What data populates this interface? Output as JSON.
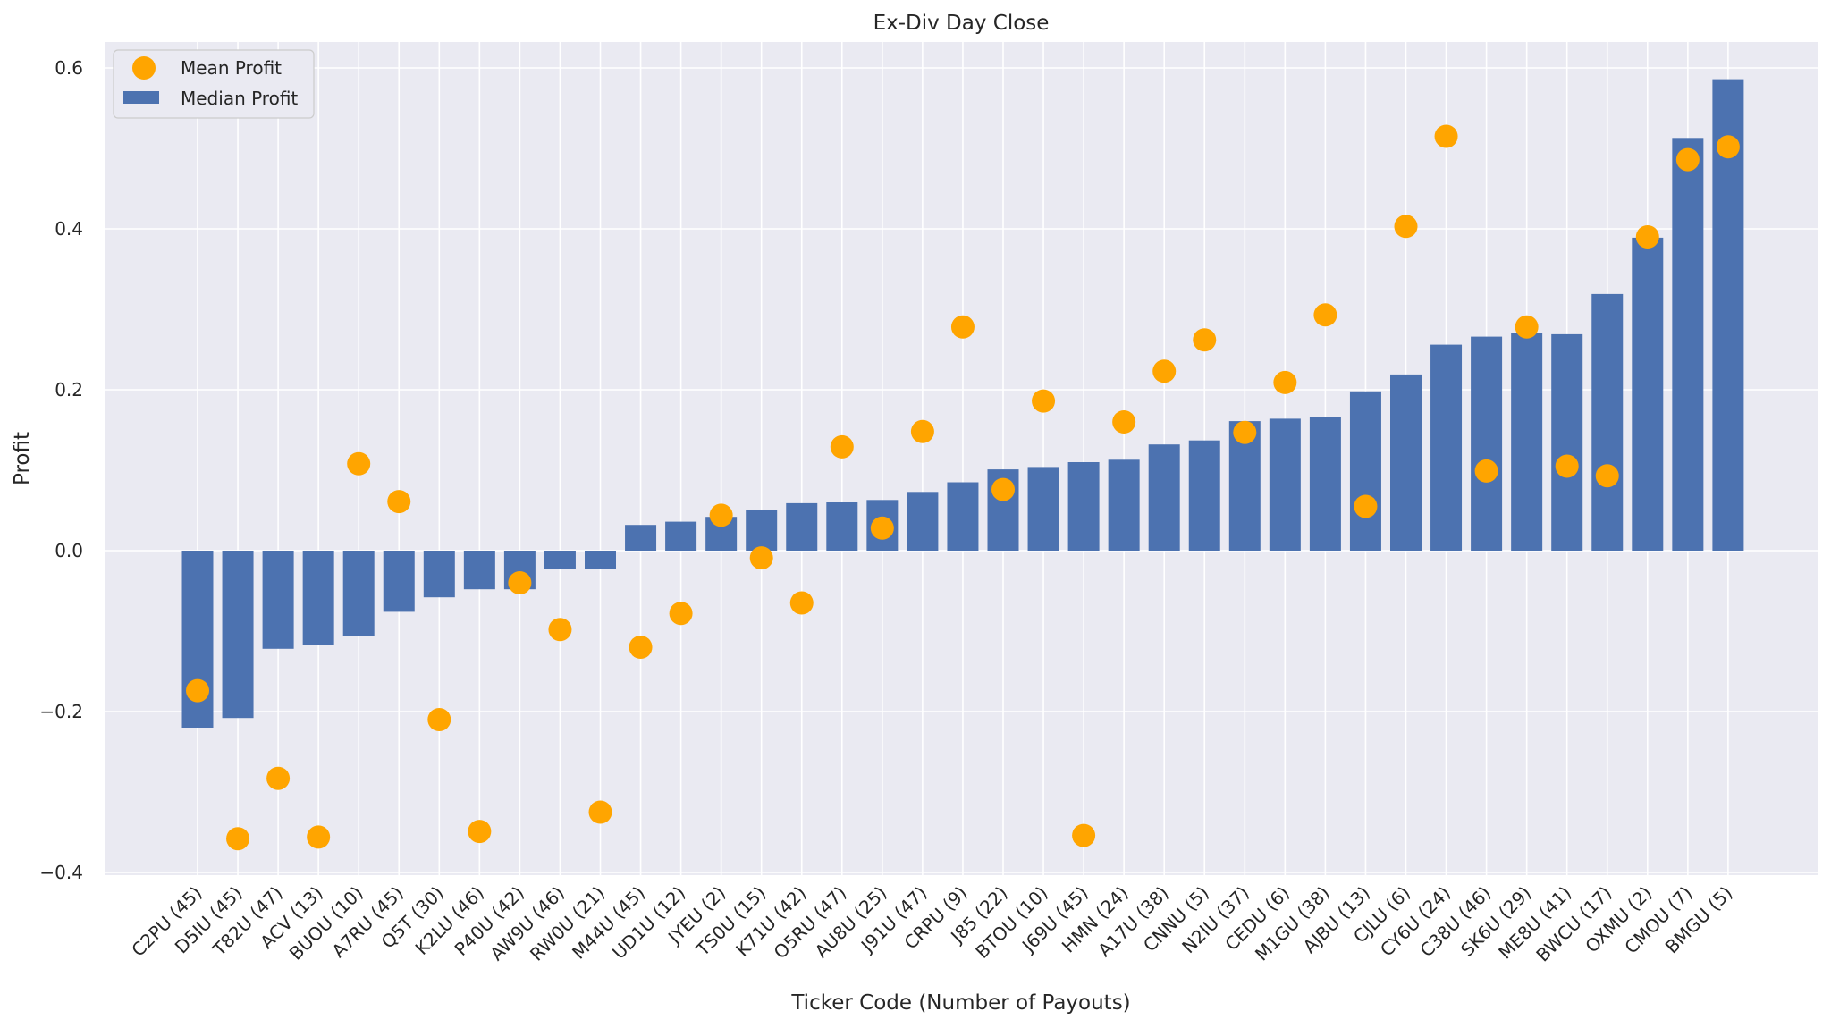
{
  "chart_data": {
    "type": "bar",
    "title": "Ex-Div Day Close",
    "xlabel": "Ticker Code (Number of Payouts)",
    "ylabel": "Profit",
    "ylim": [
      -0.4,
      0.63
    ],
    "yticks": [
      -0.4,
      -0.2,
      0.0,
      0.2,
      0.4,
      0.6
    ],
    "ytick_labels": [
      "−0.4",
      "−0.2",
      "0.0",
      "0.2",
      "0.4",
      "0.6"
    ],
    "grid": true,
    "legend_position": "top-left",
    "categories": [
      "C2PU (45)",
      "D5IU (45)",
      "T82U (47)",
      "ACV (13)",
      "BUOU (10)",
      "A7RU (45)",
      "Q5T (30)",
      "K2LU (46)",
      "P40U (42)",
      "AW9U (46)",
      "RW0U (21)",
      "M44U (45)",
      "UD1U (12)",
      "JYEU (2)",
      "TS0U (15)",
      "K71U (42)",
      "O5RU (47)",
      "AU8U (25)",
      "J91U (47)",
      "CRPU (9)",
      "J85 (22)",
      "BTOU (10)",
      "J69U (45)",
      "HMN (24)",
      "A17U (38)",
      "CNNU (5)",
      "N2IU (37)",
      "CEDU (6)",
      "M1GU (38)",
      "AJBU (13)",
      "CJLU (6)",
      "CY6U (24)",
      "C38U (46)",
      "SK6U (29)",
      "ME8U (41)",
      "BWCU (17)",
      "OXMU (2)",
      "CMOU (7)",
      "BMGU (5)"
    ],
    "series": [
      {
        "name": "Median Profit",
        "kind": "bar",
        "color": "#4c72b0",
        "values": [
          -0.22,
          -0.208,
          -0.122,
          -0.117,
          -0.106,
          -0.076,
          -0.058,
          -0.048,
          -0.048,
          -0.023,
          -0.023,
          0.032,
          0.036,
          0.042,
          0.05,
          0.059,
          0.06,
          0.063,
          0.073,
          0.085,
          0.101,
          0.104,
          0.11,
          0.113,
          0.132,
          0.137,
          0.161,
          0.164,
          0.166,
          0.198,
          0.219,
          0.256,
          0.266,
          0.27,
          0.269,
          0.319,
          0.389,
          0.513,
          0.586
        ]
      },
      {
        "name": "Mean Profit",
        "kind": "marker",
        "color": "#ffa500",
        "values": [
          -0.174,
          -0.358,
          -0.283,
          -0.356,
          0.108,
          0.061,
          -0.21,
          -0.349,
          -0.04,
          -0.098,
          -0.325,
          -0.12,
          -0.078,
          0.044,
          -0.009,
          -0.065,
          0.129,
          0.028,
          0.148,
          0.278,
          0.076,
          0.186,
          -0.354,
          0.16,
          0.223,
          0.262,
          0.147,
          0.209,
          0.293,
          0.055,
          0.403,
          0.515,
          0.099,
          0.278,
          0.105,
          0.093,
          0.39,
          0.486,
          0.502
        ]
      }
    ]
  }
}
